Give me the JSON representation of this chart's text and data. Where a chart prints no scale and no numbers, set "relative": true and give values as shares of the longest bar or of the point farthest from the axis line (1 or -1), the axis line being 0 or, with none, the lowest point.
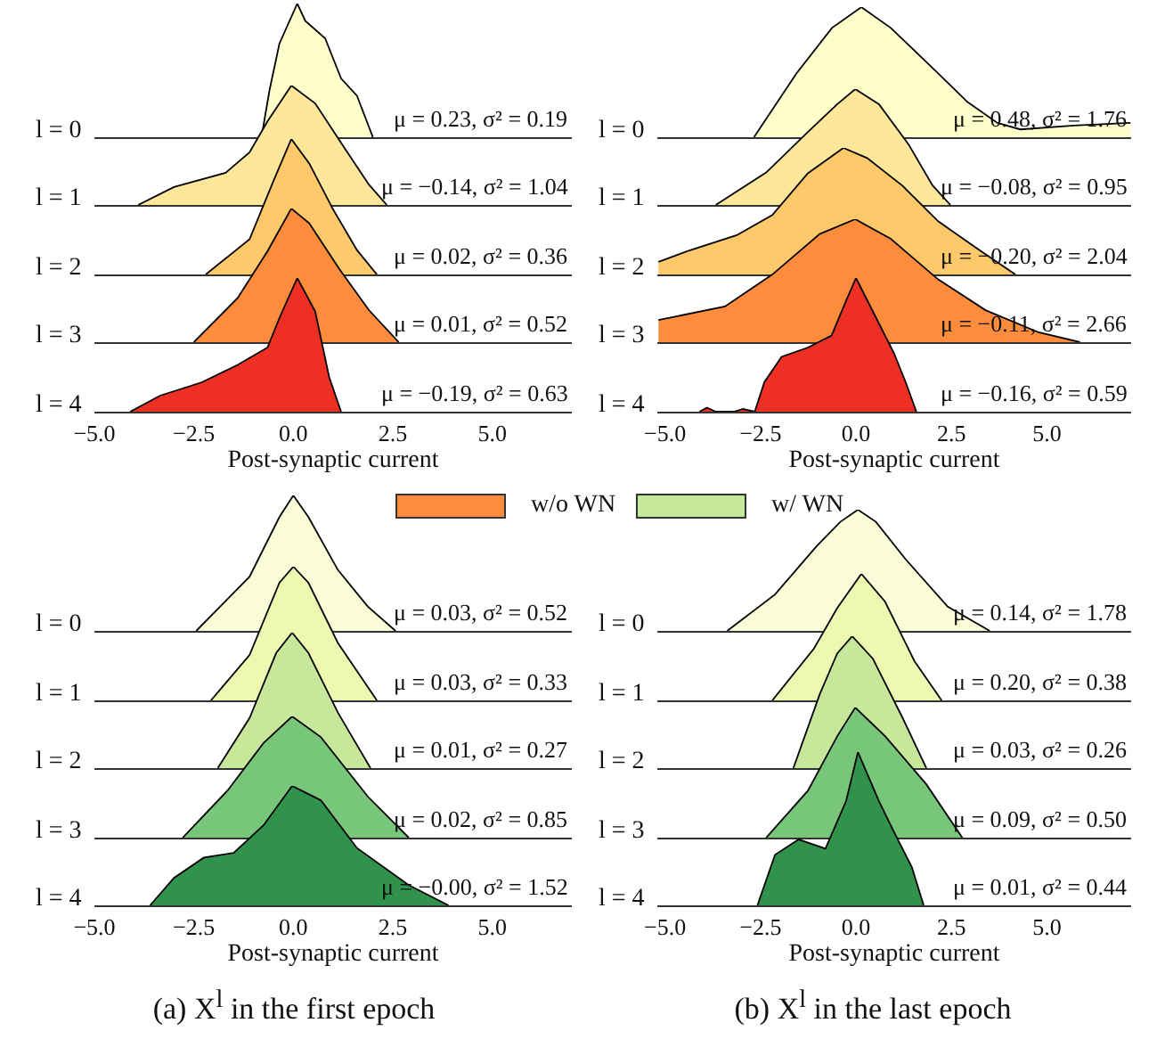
{
  "chart_data": [
    {
      "type": "area",
      "relative": true,
      "ylabel": "l = 0",
      "xlim": [
        -5,
        7
      ],
      "tick_labels": false,
      "annotations": [
        "μ = 0.23, σ² = 0.19"
      ],
      "series": [
        {
          "color": "#ffffcc",
          "x": [
            -0.8,
            -0.6,
            -0.35,
            0.1,
            0.3,
            0.8,
            1.2,
            1.6,
            2.0
          ],
          "values": [
            0,
            0.35,
            0.7,
            1,
            0.87,
            0.74,
            0.44,
            0.31,
            0
          ]
        }
      ]
    },
    {
      "type": "area",
      "relative": true,
      "ylabel": "l = 1",
      "xlim": [
        -5,
        7
      ],
      "tick_labels": false,
      "annotations": [
        "μ = −0.14, σ² = 1.04"
      ],
      "series": [
        {
          "color": "#fee79b",
          "x": [
            -3.9,
            -3.0,
            -1.7,
            -1.1,
            -0.65,
            -0.05,
            0.55,
            1.3,
            1.9,
            2.35
          ],
          "values": [
            0,
            0.15,
            0.27,
            0.44,
            0.7,
            1,
            0.85,
            0.47,
            0.17,
            0
          ]
        }
      ]
    },
    {
      "type": "area",
      "relative": true,
      "ylabel": "l = 2",
      "xlim": [
        -5,
        7
      ],
      "tick_labels": false,
      "annotations": [
        "μ = 0.02, σ² = 0.36"
      ],
      "series": [
        {
          "color": "#fec96b",
          "x": [
            -2.2,
            -1.1,
            -0.5,
            -0.05,
            0.4,
            1.0,
            1.6,
            2.1
          ],
          "values": [
            0,
            0.26,
            0.69,
            1,
            0.82,
            0.48,
            0.18,
            0
          ]
        }
      ]
    },
    {
      "type": "area",
      "relative": true,
      "ylabel": "l = 3",
      "xlim": [
        -5,
        7
      ],
      "tick_labels": false,
      "annotations": [
        "μ = 0.01, σ² = 0.52"
      ],
      "series": [
        {
          "color": "#fd8d3c",
          "x": [
            -2.5,
            -1.4,
            -0.65,
            -0.05,
            0.4,
            1.15,
            1.9,
            2.65
          ],
          "values": [
            0,
            0.33,
            0.68,
            1,
            0.89,
            0.55,
            0.24,
            0
          ]
        }
      ]
    },
    {
      "type": "area",
      "relative": true,
      "ylabel": "l = 4",
      "xlabel": "Post-synaptic current",
      "xlim": [
        -5,
        7
      ],
      "annotations": [
        "μ = −0.19, σ² = 0.63"
      ],
      "xticks": [
        {
          "value": -5,
          "label": "−5.0"
        },
        {
          "value": -2.5,
          "label": "−2.5"
        },
        {
          "value": 0,
          "label": "0.0"
        },
        {
          "value": 2.5,
          "label": "2.5"
        },
        {
          "value": 5,
          "label": "5.0"
        }
      ],
      "series": [
        {
          "color": "#ee3024",
          "x": [
            -4.1,
            -3.35,
            -2.3,
            -1.4,
            -0.65,
            -0.35,
            0.1,
            0.55,
            0.9,
            1.2
          ],
          "values": [
            0,
            0.12,
            0.22,
            0.35,
            0.48,
            0.7,
            1,
            0.75,
            0.26,
            0
          ]
        }
      ]
    },
    {
      "type": "area",
      "relative": true,
      "ylabel": "l = 0",
      "xlim": [
        -5.2,
        7.2
      ],
      "tick_labels": false,
      "annotations": [
        "μ = 0.48, σ² = 1.76"
      ],
      "series": [
        {
          "color": "#ffffcc",
          "x": [
            -2.67,
            -1.56,
            -0.63,
            0.14,
            0.91,
            2.15,
            2.92,
            3.7,
            4.3,
            5.7,
            7.18
          ],
          "values": [
            0,
            0.49,
            0.84,
            1,
            0.84,
            0.49,
            0.27,
            0.11,
            0.06,
            0.09,
            0.11
          ]
        }
      ]
    },
    {
      "type": "area",
      "relative": true,
      "ylabel": "l = 1",
      "xlim": [
        -5.2,
        7.2
      ],
      "tick_labels": false,
      "annotations": [
        "μ = −0.08, σ² = 0.95"
      ],
      "series": [
        {
          "color": "#fee79b",
          "x": [
            -3.67,
            -2.35,
            -1.26,
            -0.49,
            -0.02,
            0.6,
            1.38,
            2.0,
            2.47
          ],
          "values": [
            0,
            0.28,
            0.63,
            0.87,
            1,
            0.87,
            0.52,
            0.17,
            0
          ]
        }
      ]
    },
    {
      "type": "area",
      "relative": true,
      "ylabel": "l = 2",
      "xlim": [
        -5.2,
        7.2
      ],
      "tick_labels": false,
      "annotations": [
        "μ = −0.20, σ² = 2.04"
      ],
      "series": [
        {
          "color": "#fec96b",
          "x": [
            -5.17,
            -4.36,
            -3.12,
            -2.19,
            -1.26,
            -0.33,
            0.29,
            1.22,
            2.15,
            3.24,
            4.17
          ],
          "values": [
            0.1,
            0.19,
            0.31,
            0.47,
            0.8,
            1,
            0.92,
            0.7,
            0.42,
            0.19,
            0
          ]
        }
      ]
    },
    {
      "type": "area",
      "relative": true,
      "ylabel": "l = 3",
      "xlim": [
        -5.2,
        7.2
      ],
      "tick_labels": false,
      "annotations": [
        "μ = −0.11, σ² = 2.66"
      ],
      "series": [
        {
          "color": "#fd8d3c",
          "x": [
            -5.17,
            -3.43,
            -2.19,
            -0.95,
            -0.02,
            0.91,
            2.15,
            3.39,
            4.78,
            5.86
          ],
          "values": [
            0.18,
            0.29,
            0.55,
            0.88,
            1,
            0.84,
            0.51,
            0.26,
            0.08,
            0
          ]
        }
      ]
    },
    {
      "type": "area",
      "relative": true,
      "ylabel": "l = 4",
      "xlabel": "Post-synaptic current",
      "xlim": [
        -5.2,
        7.2
      ],
      "annotations": [
        "μ = −0.16, σ² = 0.59"
      ],
      "xticks": [
        {
          "value": -5,
          "label": "−5.0"
        },
        {
          "value": -2.5,
          "label": "−2.5"
        },
        {
          "value": 0,
          "label": "0.0"
        },
        {
          "value": 2.5,
          "label": "2.5"
        },
        {
          "value": 5,
          "label": "5.0"
        }
      ],
      "series": [
        {
          "color": "#ee3024",
          "x": [
            -4.1,
            -3.9,
            -3.67,
            -3.2,
            -2.96,
            -2.65,
            -2.4,
            -1.95,
            -1.26,
            -0.64,
            -0.26,
            0.0,
            0.44,
            0.99,
            1.3,
            1.58
          ],
          "values": [
            0,
            0.03,
            0,
            0,
            0.02,
            0,
            0.22,
            0.41,
            0.48,
            0.57,
            0.83,
            1,
            0.75,
            0.44,
            0.22,
            0
          ]
        }
      ]
    },
    {
      "type": "other",
      "categories": [
        "w/o WN",
        "w/ WN"
      ],
      "colors": [
        "#fd8d3c",
        "#c7e89b"
      ]
    },
    {
      "type": "area",
      "relative": true,
      "ylabel": "l = 0",
      "xlim": [
        -5,
        7
      ],
      "tick_labels": false,
      "annotations": [
        "μ = 0.03, σ² = 0.52"
      ],
      "series": [
        {
          "color": "#f9fcd6",
          "x": [
            -2.44,
            -1.1,
            -0.35,
            0.0,
            0.38,
            1.12,
            1.87,
            2.57
          ],
          "values": [
            0,
            0.4,
            0.84,
            1,
            0.84,
            0.45,
            0.18,
            0
          ]
        }
      ]
    },
    {
      "type": "area",
      "relative": true,
      "ylabel": "l = 1",
      "xlim": [
        -5,
        7
      ],
      "tick_labels": false,
      "annotations": [
        "μ = 0.03, σ² = 0.33"
      ],
      "series": [
        {
          "color": "#edf8b1",
          "x": [
            -2.07,
            -1.1,
            -0.35,
            0.0,
            0.38,
            1.12,
            2.1
          ],
          "values": [
            0,
            0.34,
            0.88,
            1,
            0.88,
            0.43,
            0
          ]
        }
      ]
    },
    {
      "type": "area",
      "relative": true,
      "ylabel": "l = 2",
      "xlim": [
        -5,
        7
      ],
      "tick_labels": false,
      "annotations": [
        "μ = 0.01, σ² = 0.27"
      ],
      "series": [
        {
          "color": "#c7e89b",
          "x": [
            -1.9,
            -1.1,
            -0.43,
            -0.03,
            0.38,
            1.12,
            1.94
          ],
          "values": [
            0,
            0.37,
            0.85,
            1,
            0.85,
            0.41,
            0
          ]
        }
      ]
    },
    {
      "type": "area",
      "relative": true,
      "ylabel": "l = 3",
      "xlim": [
        -5,
        7
      ],
      "tick_labels": false,
      "annotations": [
        "μ = 0.02, σ² = 0.85"
      ],
      "series": [
        {
          "color": "#78c679",
          "x": [
            -2.78,
            -1.65,
            -0.75,
            -0.03,
            0.69,
            1.87,
            2.9
          ],
          "values": [
            0,
            0.39,
            0.78,
            1,
            0.83,
            0.34,
            0
          ]
        }
      ]
    },
    {
      "type": "area",
      "relative": true,
      "ylabel": "l = 4",
      "xlabel": "Post-synaptic current",
      "xlim": [
        -5,
        7
      ],
      "annotations": [
        "μ = −0.00, σ² = 1.52"
      ],
      "xticks": [
        {
          "value": -5,
          "label": "−5.0"
        },
        {
          "value": -2.5,
          "label": "−2.5"
        },
        {
          "value": 0,
          "label": "0.0"
        },
        {
          "value": 2.5,
          "label": "2.5"
        },
        {
          "value": 5,
          "label": "5.0"
        }
      ],
      "series": [
        {
          "color": "#31934b",
          "x": [
            -3.6,
            -3.0,
            -2.25,
            -1.5,
            -0.75,
            -0.03,
            0.69,
            1.6,
            2.9,
            3.9
          ],
          "values": [
            0,
            0.23,
            0.4,
            0.44,
            0.67,
            1,
            0.88,
            0.48,
            0.17,
            0
          ]
        }
      ]
    },
    {
      "type": "area",
      "relative": true,
      "ylabel": "l = 0",
      "xlim": [
        -5.2,
        7.2
      ],
      "tick_labels": false,
      "annotations": [
        "μ = 0.14, σ² = 1.78"
      ],
      "series": [
        {
          "color": "#f9fcd6",
          "x": [
            -3.37,
            -2.12,
            -1.03,
            -0.41,
            0.05,
            0.52,
            1.3,
            2.4,
            3.5
          ],
          "values": [
            0,
            0.3,
            0.7,
            0.9,
            1,
            0.9,
            0.59,
            0.2,
            0
          ]
        }
      ]
    },
    {
      "type": "area",
      "relative": true,
      "ylabel": "l = 1",
      "xlim": [
        -5.2,
        7.2
      ],
      "tick_labels": false,
      "annotations": [
        "μ = 0.20, σ² = 0.38"
      ],
      "series": [
        {
          "color": "#edf8b1",
          "x": [
            -2.19,
            -1.1,
            -0.49,
            0.14,
            0.76,
            1.53,
            2.24
          ],
          "values": [
            0,
            0.41,
            0.73,
            1,
            0.78,
            0.31,
            0
          ]
        }
      ]
    },
    {
      "type": "area",
      "relative": true,
      "ylabel": "l = 2",
      "xlim": [
        -5.2,
        7.2
      ],
      "tick_labels": false,
      "annotations": [
        "μ = 0.03, σ² = 0.26"
      ],
      "series": [
        {
          "color": "#c7e89b",
          "x": [
            -1.64,
            -0.95,
            -0.49,
            -0.1,
            0.44,
            1.22,
            1.84
          ],
          "values": [
            0,
            0.56,
            0.87,
            1,
            0.83,
            0.38,
            0
          ]
        }
      ]
    },
    {
      "type": "area",
      "relative": true,
      "ylabel": "l = 3",
      "xlim": [
        -5.2,
        7.2
      ],
      "tick_labels": false,
      "annotations": [
        "μ = 0.09, σ² = 0.50"
      ],
      "series": [
        {
          "color": "#78c679",
          "x": [
            -2.35,
            -1.26,
            -0.49,
            -0.02,
            0.76,
            1.84,
            2.78
          ],
          "values": [
            0,
            0.36,
            0.78,
            1,
            0.78,
            0.41,
            0
          ]
        }
      ]
    },
    {
      "type": "area",
      "relative": true,
      "ylabel": "l = 4",
      "xlabel": "Post-synaptic current",
      "xlim": [
        -5.2,
        7.2
      ],
      "annotations": [
        "μ = 0.01, σ² = 0.44"
      ],
      "xticks": [
        {
          "value": -5,
          "label": "−5.0"
        },
        {
          "value": -2.5,
          "label": "−2.5"
        },
        {
          "value": 0,
          "label": "0.0"
        },
        {
          "value": 2.5,
          "label": "2.5"
        },
        {
          "value": 5,
          "label": "5.0"
        }
      ],
      "series": [
        {
          "color": "#31934b",
          "x": [
            -2.58,
            -2.12,
            -1.5,
            -0.8,
            -0.26,
            0.05,
            0.6,
            0.99,
            1.46,
            1.77
          ],
          "values": [
            0,
            0.33,
            0.43,
            0.37,
            0.68,
            1,
            0.68,
            0.48,
            0.25,
            0
          ]
        }
      ]
    },
    {
      "type": "other",
      "annotations": [
        "(a) X$^{l}$ in the first epoch",
        "(b) X$^{l}$ in the last epoch"
      ]
    }
  ]
}
